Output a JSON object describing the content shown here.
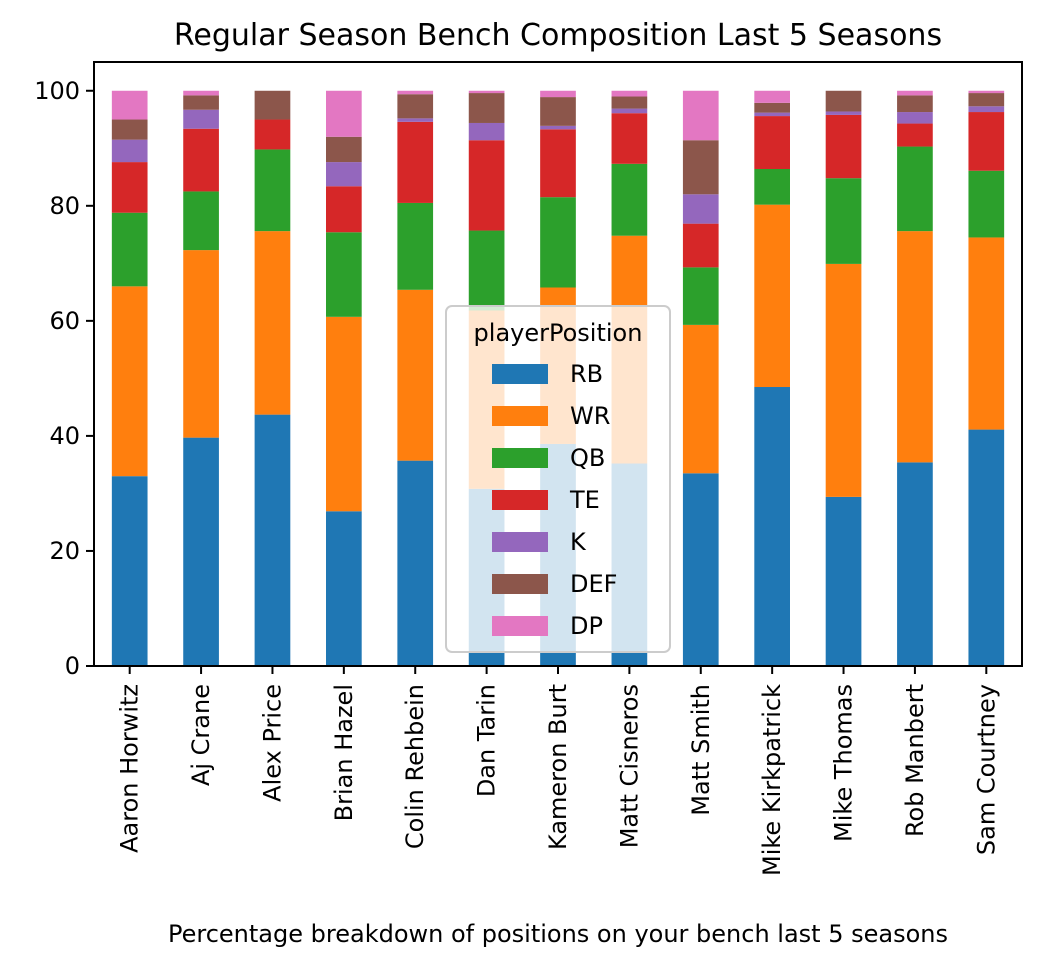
{
  "chart_data": {
    "type": "bar",
    "stacked": true,
    "title": "Regular Season Bench Composition Last 5 Seasons",
    "xlabel": "Percentage breakdown of positions on your bench last 5 seasons",
    "ylabel": "",
    "ylim": [
      0,
      105
    ],
    "yticks": [
      0,
      20,
      40,
      60,
      80,
      100
    ],
    "grid": false,
    "legend": {
      "title": "playerPosition",
      "placement": "center"
    },
    "categories": [
      "Aaron Horwitz",
      "Aj Crane",
      "Alex Price",
      "Brian Hazel",
      "Colin Rehbein",
      "Dan Tarin",
      "Kameron Burt",
      "Matt Cisneros",
      "Matt Smith",
      "Mike Kirkpatrick",
      "Mike Thomas",
      "Rob Manbert",
      "Sam Courtney"
    ],
    "series": [
      {
        "name": "RB",
        "color": "#1f77b4",
        "values": [
          33.0,
          39.7,
          43.7,
          26.9,
          35.7,
          30.8,
          38.6,
          35.2,
          33.5,
          48.5,
          29.4,
          35.4,
          41.1
        ]
      },
      {
        "name": "WR",
        "color": "#ff7f0e",
        "values": [
          33.0,
          32.6,
          31.9,
          33.8,
          29.7,
          31.0,
          27.2,
          39.6,
          25.8,
          31.7,
          40.5,
          40.2,
          33.4
        ]
      },
      {
        "name": "QB",
        "color": "#2ca02c",
        "values": [
          12.8,
          10.2,
          14.2,
          14.7,
          15.1,
          13.9,
          15.7,
          12.5,
          10.0,
          6.2,
          14.9,
          14.7,
          11.6
        ]
      },
      {
        "name": "TE",
        "color": "#d62728",
        "values": [
          8.8,
          10.9,
          5.2,
          8.0,
          14.1,
          15.7,
          11.8,
          8.8,
          7.6,
          9.2,
          11.0,
          4.0,
          10.2
        ]
      },
      {
        "name": "K",
        "color": "#9467bd",
        "values": [
          3.9,
          3.3,
          0.0,
          4.2,
          0.6,
          3.0,
          0.6,
          0.8,
          5.1,
          0.6,
          0.6,
          2.0,
          1.0
        ]
      },
      {
        "name": "DEF",
        "color": "#8c564b",
        "values": [
          3.5,
          2.5,
          5.0,
          4.4,
          4.2,
          5.2,
          5.0,
          2.1,
          9.4,
          1.7,
          3.6,
          2.9,
          2.3
        ]
      },
      {
        "name": "DP",
        "color": "#e377c2",
        "values": [
          5.0,
          0.8,
          0.0,
          8.0,
          0.6,
          0.4,
          1.1,
          1.0,
          8.6,
          2.1,
          0.0,
          0.8,
          0.4
        ]
      }
    ]
  }
}
